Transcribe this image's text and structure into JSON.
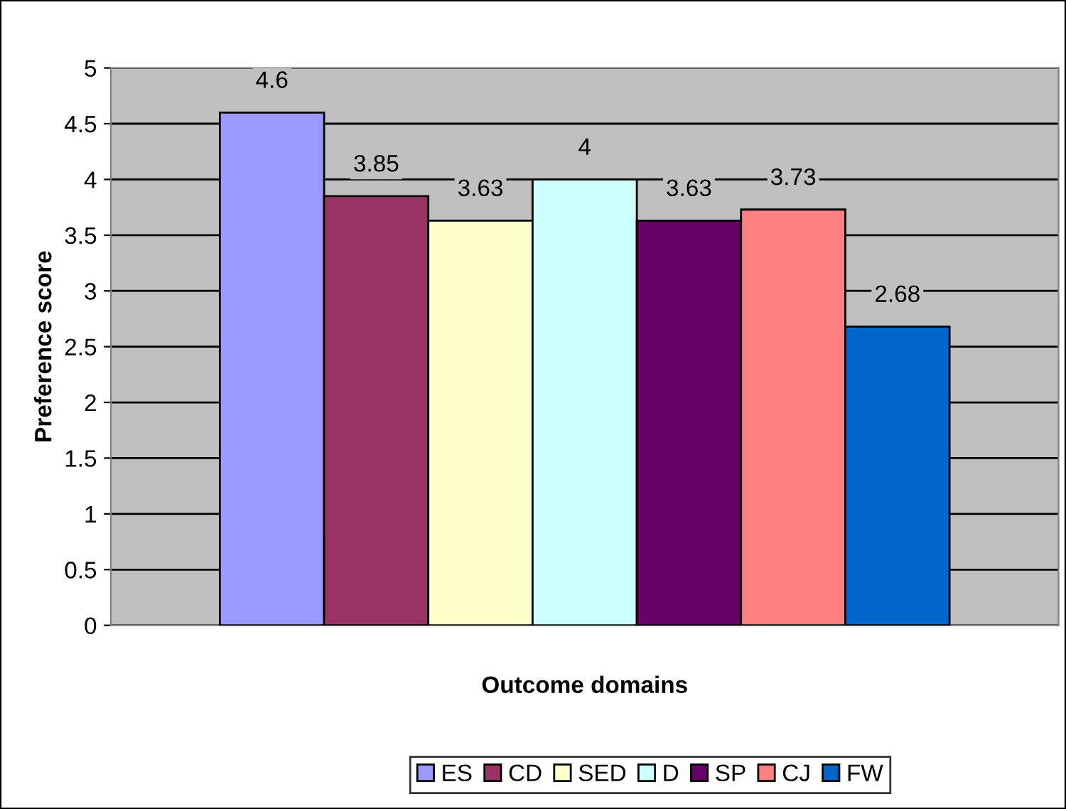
{
  "chart_data": {
    "type": "bar",
    "xlabel": "Outcome domains",
    "ylabel": "Preference score",
    "categories": [
      null
    ],
    "series": [
      {
        "name": "ES",
        "color": "#9999ff",
        "values": [
          4.6
        ]
      },
      {
        "name": "CD",
        "color": "#993366",
        "values": [
          3.85
        ]
      },
      {
        "name": "SED",
        "color": "#ffffcc",
        "values": [
          3.63
        ]
      },
      {
        "name": "D",
        "color": "#ccffff",
        "values": [
          4
        ]
      },
      {
        "name": "SP",
        "color": "#660066",
        "values": [
          3.63
        ]
      },
      {
        "name": "CJ",
        "color": "#ff8080",
        "values": [
          3.73
        ]
      },
      {
        "name": "FW",
        "color": "#0066cc",
        "values": [
          2.68
        ]
      }
    ],
    "ylim": [
      0,
      5
    ],
    "yticks": [
      0,
      0.5,
      1,
      1.5,
      2,
      2.5,
      3,
      3.5,
      4,
      4.5,
      5
    ],
    "grid": "y",
    "legend": "bottom",
    "data_labels": true
  }
}
